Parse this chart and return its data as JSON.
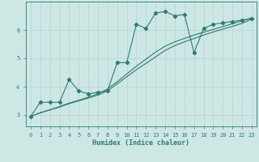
{
  "xlabel": "Humidex (Indice chaleur)",
  "ylabel": "",
  "bg_color": "#cde8e4",
  "grid_color": "#b8d8d4",
  "line_color": "#2d7d6e",
  "xlim": [
    -0.5,
    23.5
  ],
  "ylim": [
    2.6,
    7.0
  ],
  "yticks": [
    3,
    4,
    5,
    6
  ],
  "xticks": [
    0,
    1,
    2,
    3,
    4,
    5,
    6,
    7,
    8,
    9,
    10,
    11,
    12,
    13,
    14,
    15,
    16,
    17,
    18,
    19,
    20,
    21,
    22,
    23
  ],
  "series": [
    {
      "x": [
        0,
        1,
        2,
        3,
        4,
        5,
        6,
        7,
        8,
        9,
        10,
        11,
        12,
        13,
        14,
        15,
        16,
        17,
        18,
        19,
        20,
        21,
        22,
        23
      ],
      "y": [
        2.95,
        3.45,
        3.45,
        3.45,
        4.25,
        3.85,
        3.75,
        3.8,
        3.85,
        4.85,
        4.85,
        6.2,
        6.05,
        6.6,
        6.65,
        6.5,
        6.55,
        5.2,
        6.05,
        6.2,
        6.25,
        6.3,
        6.35,
        6.4
      ],
      "marker": true
    },
    {
      "x": [
        0,
        1,
        2,
        3,
        4,
        5,
        6,
        7,
        8,
        9,
        10,
        11,
        12,
        13,
        14,
        15,
        16,
        17,
        18,
        19,
        20,
        21,
        22,
        23
      ],
      "y": [
        2.95,
        3.08,
        3.18,
        3.28,
        3.4,
        3.5,
        3.6,
        3.7,
        3.85,
        4.1,
        4.35,
        4.6,
        4.82,
        5.05,
        5.28,
        5.45,
        5.58,
        5.7,
        5.82,
        5.93,
        6.03,
        6.13,
        6.23,
        6.38
      ],
      "marker": false
    },
    {
      "x": [
        0,
        1,
        2,
        3,
        4,
        5,
        6,
        7,
        8,
        9,
        10,
        11,
        12,
        13,
        14,
        15,
        16,
        17,
        18,
        19,
        20,
        21,
        22,
        23
      ],
      "y": [
        2.95,
        3.08,
        3.18,
        3.3,
        3.42,
        3.52,
        3.63,
        3.75,
        3.92,
        4.17,
        4.45,
        4.72,
        4.97,
        5.22,
        5.43,
        5.58,
        5.7,
        5.82,
        5.92,
        6.02,
        6.12,
        6.22,
        6.32,
        6.43
      ],
      "marker": false
    }
  ]
}
